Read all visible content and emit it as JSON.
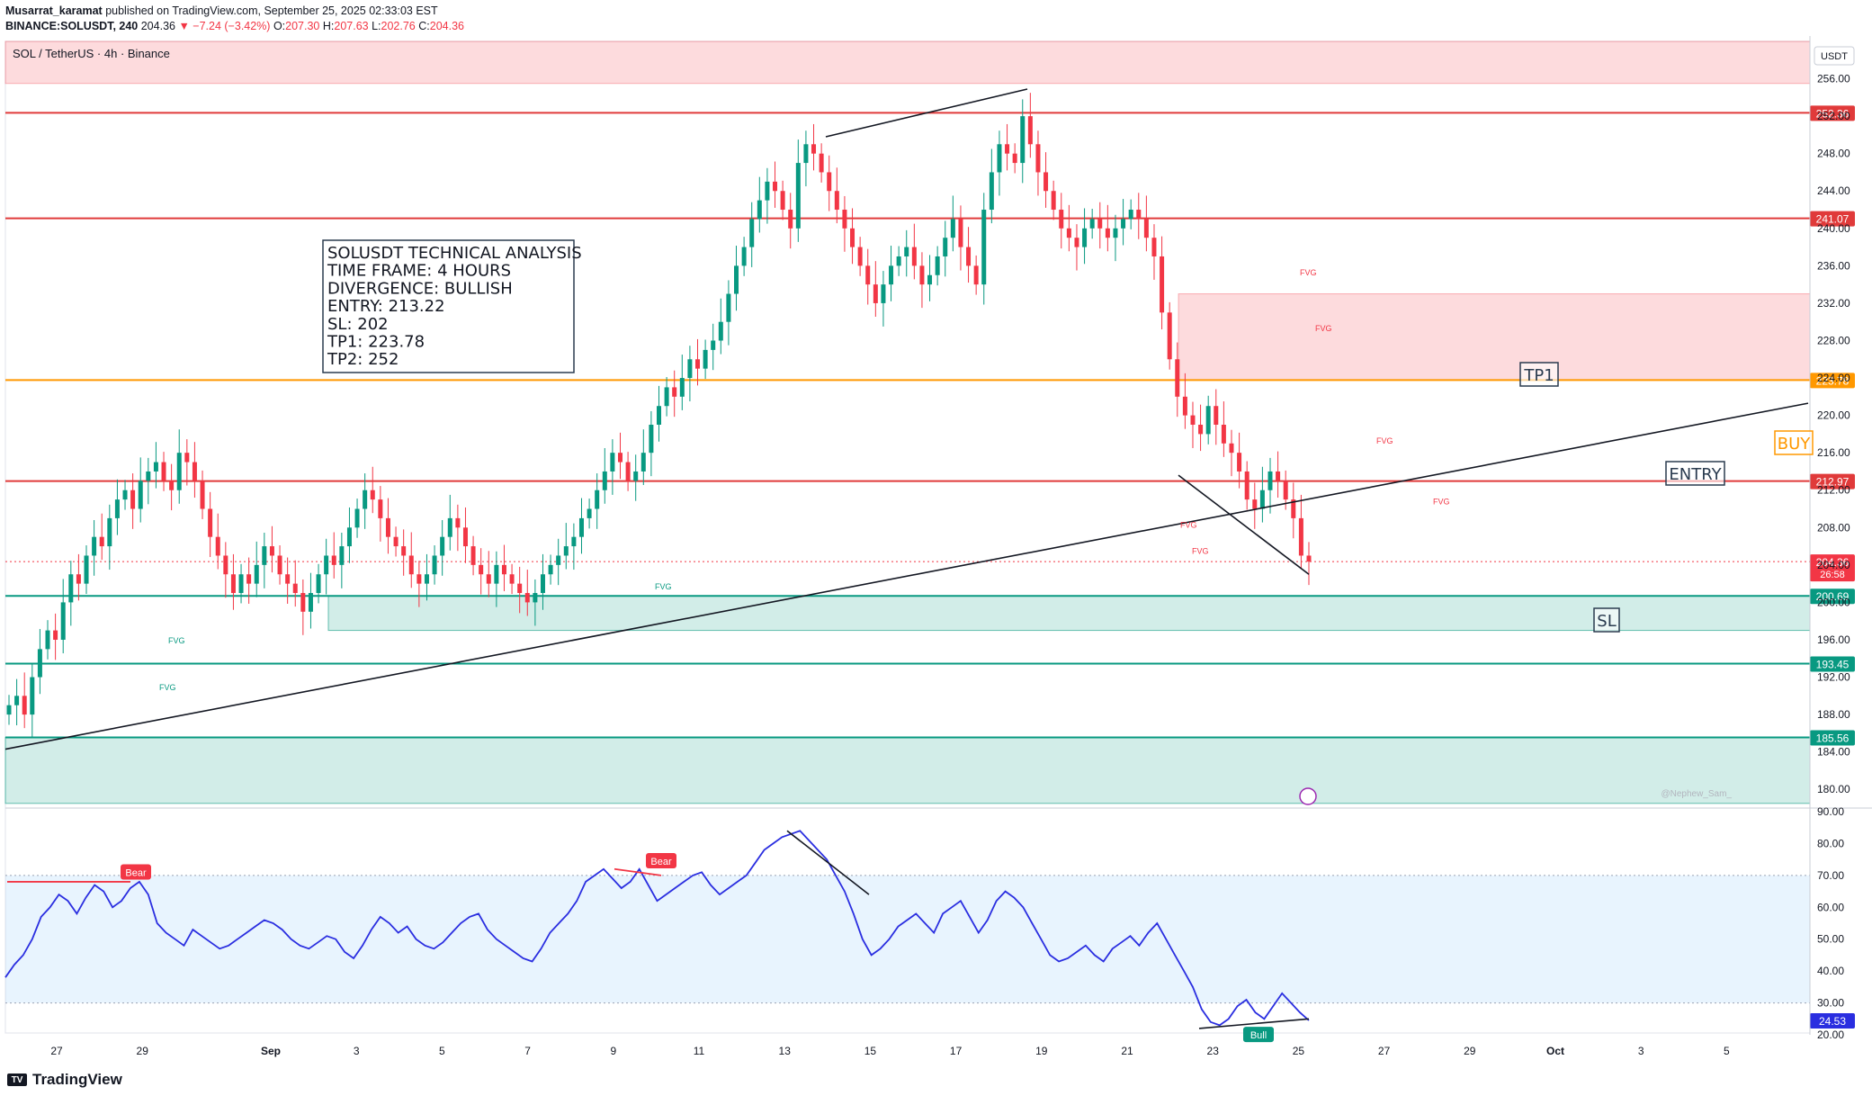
{
  "header": {
    "publisher": "Musarrat_karamat",
    "published_text": "published on TradingView.com, September 25, 2025 02:33:03 EST",
    "symbol": "BINANCE:SOLUSDT, 240",
    "last": "204.36",
    "change": "▼ −7.24 (−3.42%)",
    "o_label": "O:",
    "o": "207.30",
    "h_label": "H:",
    "h": "207.63",
    "l_label": "L:",
    "l": "202.76",
    "c_label": "C:",
    "c": "204.36"
  },
  "pane_title": "SOL / TetherUS · 4h · Binance",
  "currency": "USDT",
  "watermark": "@Nephew_Sam_",
  "footer_brand": "TradingView",
  "analysis_box": [
    "SOLUSDT TECHNICAL ANALYSIS",
    "TIME FRAME: 4 HOURS",
    "DIVERGENCE: BULLISH",
    "ENTRY: 213.22",
    "SL: 202",
    "TP1: 223.78",
    "TP2: 252"
  ],
  "labels": {
    "tp1": "TP1",
    "entry": "ENTRY",
    "sl": "SL",
    "buy": "BUY",
    "fvg": "FVG",
    "bear": "Bear",
    "bull": "Bull"
  },
  "colors": {
    "bull": "#089981",
    "bear": "#f23645",
    "rsi": "#2a2ee0",
    "level_red": "#e03a3a",
    "level_green": "#089981",
    "orange": "#ff9800"
  },
  "chart_data": [
    {
      "type": "candlestick",
      "title": "SOL / TetherUS · 4h · Binance",
      "ylabel": "USDT",
      "ylim": [
        178,
        260
      ],
      "y_ticks": [
        "256.00",
        "252.00",
        "248.00",
        "244.00",
        "240.00",
        "236.00",
        "232.00",
        "228.00",
        "224.00",
        "220.00",
        "216.00",
        "212.00",
        "208.00",
        "204.00",
        "200.00",
        "196.00",
        "192.00",
        "188.00",
        "184.00",
        "180.00"
      ],
      "x_ticks": [
        "27",
        "29",
        "Sep",
        "3",
        "5",
        "7",
        "9",
        "11",
        "13",
        "15",
        "17",
        "19",
        "21",
        "23",
        "25",
        "27",
        "29",
        "Oct",
        "3",
        "5"
      ],
      "x_tick_days": [
        0,
        2,
        5,
        7,
        9,
        11,
        13,
        15,
        17,
        19,
        21,
        23,
        25,
        27,
        29,
        31,
        33,
        35,
        37,
        39
      ],
      "price_closes": [
        189,
        190,
        188,
        192,
        195,
        197,
        196,
        200,
        203,
        202,
        205,
        207,
        206,
        209,
        211,
        212,
        210,
        213,
        214,
        215,
        213,
        212,
        216,
        215,
        213,
        210,
        207,
        205,
        203,
        201,
        203,
        202,
        204,
        206,
        205,
        203,
        202,
        201,
        199,
        201,
        203,
        205,
        204,
        206,
        208,
        210,
        212,
        211,
        209,
        207,
        206,
        205,
        203,
        202,
        203,
        205,
        207,
        209,
        208,
        206,
        204,
        203,
        202,
        204,
        203,
        202,
        201,
        200,
        201,
        203,
        204,
        205,
        206,
        207,
        209,
        210,
        212,
        214,
        216,
        215,
        213,
        214,
        216,
        219,
        221,
        223,
        222,
        224,
        226,
        225,
        227,
        228,
        230,
        233,
        236,
        238,
        241,
        243,
        245,
        244,
        242,
        240,
        247,
        249,
        248,
        246,
        244,
        242,
        240,
        238,
        236,
        234,
        232,
        234,
        236,
        237,
        238,
        236,
        234,
        235,
        237,
        239,
        241,
        238,
        236,
        234,
        242,
        246,
        249,
        248,
        247,
        252,
        249,
        246,
        244,
        242,
        240,
        239,
        238,
        240,
        241,
        240,
        239,
        240,
        241,
        242,
        241,
        239,
        237,
        231,
        226,
        222,
        220,
        219,
        218,
        221,
        219,
        217,
        216,
        214,
        211,
        210,
        212,
        214,
        213,
        211,
        209,
        205,
        204.36
      ],
      "levels": [
        {
          "value": 252.36,
          "label": "252.36",
          "color": "#e03a3a"
        },
        {
          "value": 241.07,
          "label": "241.07",
          "color": "#e03a3a"
        },
        {
          "value": 223.78,
          "label": "223.78",
          "color": "#ff9800"
        },
        {
          "value": 212.97,
          "label": "212.97",
          "color": "#e03a3a"
        },
        {
          "value": 204.36,
          "label": "204.36",
          "sublabel": "26:58",
          "color": "#f23645"
        },
        {
          "value": 200.69,
          "label": "200.69",
          "color": "#089981"
        },
        {
          "value": 193.45,
          "label": "193.45",
          "color": "#089981"
        },
        {
          "value": 185.56,
          "label": "185.56",
          "color": "#089981"
        }
      ],
      "zones": [
        {
          "from": 255.5,
          "to": 260,
          "color": "red"
        },
        {
          "from": 223.78,
          "to": 233,
          "color": "red"
        },
        {
          "from": 197,
          "to": 200.69,
          "color": "green"
        },
        {
          "from": 178.5,
          "to": 185.56,
          "color": "green"
        }
      ]
    },
    {
      "type": "line",
      "title": "RSI",
      "ylim": [
        20,
        90
      ],
      "y_ticks": [
        "90.00",
        "80.00",
        "70.00",
        "60.00",
        "50.00",
        "40.00",
        "30.00",
        "20.00"
      ],
      "band": [
        30,
        70
      ],
      "last_value": "24.53",
      "values": [
        38,
        42,
        45,
        50,
        57,
        60,
        64,
        62,
        58,
        63,
        67,
        65,
        60,
        62,
        66,
        68,
        64,
        55,
        52,
        50,
        48,
        53,
        51,
        49,
        47,
        48,
        50,
        52,
        54,
        56,
        55,
        53,
        50,
        48,
        47,
        49,
        51,
        50,
        46,
        44,
        48,
        53,
        57,
        55,
        52,
        54,
        50,
        48,
        47,
        49,
        52,
        55,
        57,
        58,
        53,
        50,
        48,
        46,
        44,
        43,
        47,
        52,
        55,
        58,
        62,
        68,
        70,
        72,
        69,
        66,
        68,
        72,
        67,
        62,
        64,
        66,
        68,
        70,
        71,
        67,
        64,
        66,
        68,
        70,
        74,
        78,
        80,
        82,
        83,
        84,
        81,
        78,
        75,
        70,
        65,
        58,
        50,
        45,
        47,
        50,
        54,
        56,
        58,
        55,
        52,
        58,
        60,
        62,
        57,
        52,
        56,
        62,
        65,
        63,
        60,
        55,
        50,
        45,
        43,
        44,
        46,
        48,
        45,
        43,
        47,
        49,
        51,
        48,
        52,
        55,
        50,
        45,
        40,
        35,
        28,
        24,
        23,
        25,
        29,
        31,
        27,
        25,
        29,
        33,
        30,
        27,
        24.53
      ]
    }
  ]
}
